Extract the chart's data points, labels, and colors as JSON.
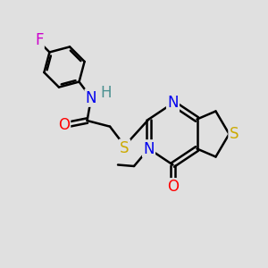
{
  "bg_color": "#e0e0e0",
  "atom_colors": {
    "C": "#000000",
    "N": "#0000ee",
    "O": "#ff0000",
    "S": "#ccaa00",
    "F": "#cc00cc",
    "H": "#4a9090"
  },
  "bond_color": "#000000",
  "bond_width": 1.8,
  "font_size": 12
}
